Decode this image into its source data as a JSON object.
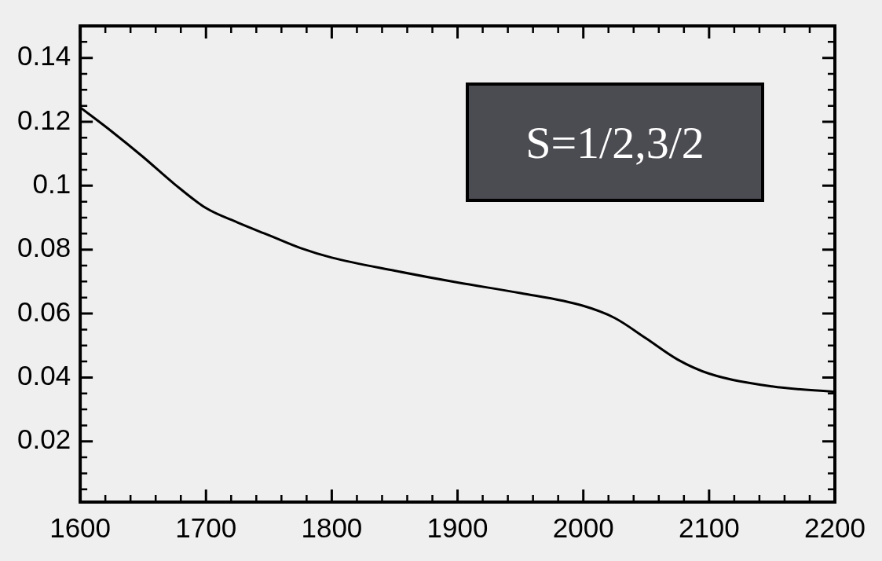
{
  "chart_data": {
    "type": "line",
    "annotations": [
      "S=1/2,3/2"
    ],
    "x": [
      1600,
      1625,
      1650,
      1675,
      1700,
      1725,
      1750,
      1775,
      1800,
      1850,
      1900,
      1950,
      2000,
      2025,
      2050,
      2075,
      2100,
      2150,
      2200
    ],
    "series": [
      {
        "color": "#000000",
        "values": [
          0.1245,
          0.117,
          0.109,
          0.1005,
          0.093,
          0.0885,
          0.0845,
          0.0805,
          0.0775,
          0.0734,
          0.0697,
          0.0664,
          0.0624,
          0.0586,
          0.0522,
          0.0456,
          0.0412,
          0.0372,
          0.0355
        ]
      }
    ],
    "xlim": [
      1600,
      2200
    ],
    "xticks": [
      1600,
      1700,
      1800,
      1900,
      2000,
      2100,
      2200
    ],
    "ylim": [
      0.001,
      0.15
    ],
    "yticks": [
      0.02,
      0.04,
      0.06,
      0.08,
      0.1,
      0.12,
      0.14
    ],
    "grid": false,
    "legend": false,
    "marker": "none",
    "line_style": "solid"
  }
}
